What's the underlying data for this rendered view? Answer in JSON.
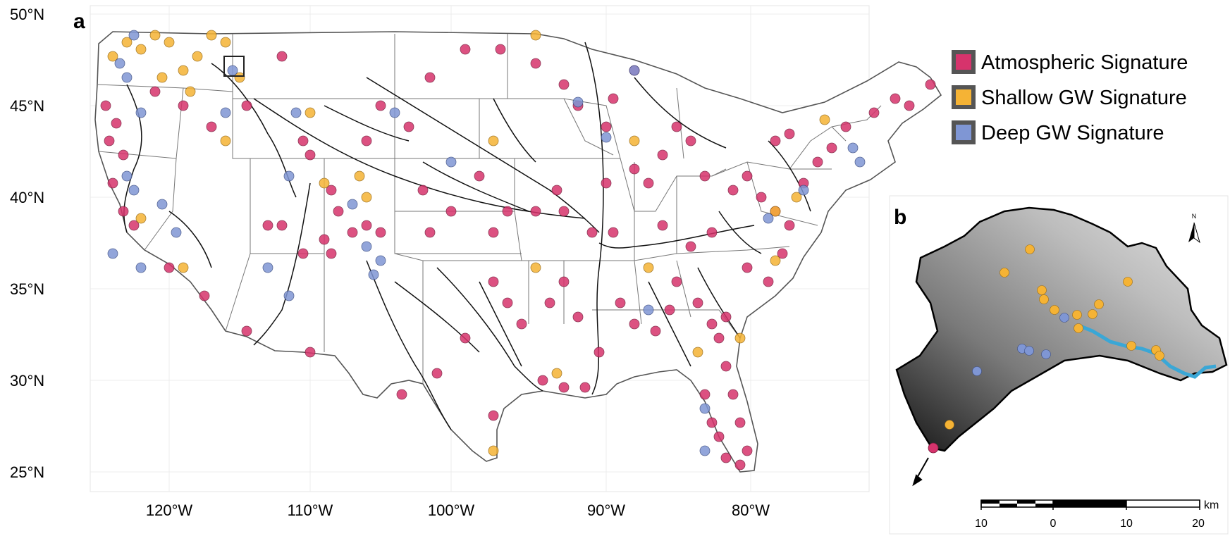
{
  "panel_a": {
    "label": "a",
    "latitude_labels": [
      "50°N",
      "45°N",
      "40°N",
      "35°N",
      "30°N",
      "25°N"
    ],
    "longitude_labels": [
      "120°W",
      "110°W",
      "100°W",
      "90°W",
      "80°W"
    ]
  },
  "panel_b": {
    "label": "b",
    "north_label": "N",
    "scale_unit": "km",
    "scale_ticks": [
      "10",
      "0",
      "10",
      "20"
    ]
  },
  "legend": [
    {
      "label": "Atmospheric Signature",
      "color": "#d6336c"
    },
    {
      "label": "Shallow GW Signature",
      "color": "#f5b335"
    },
    {
      "label": "Deep GW Signature",
      "color": "#7f96d4"
    }
  ]
}
